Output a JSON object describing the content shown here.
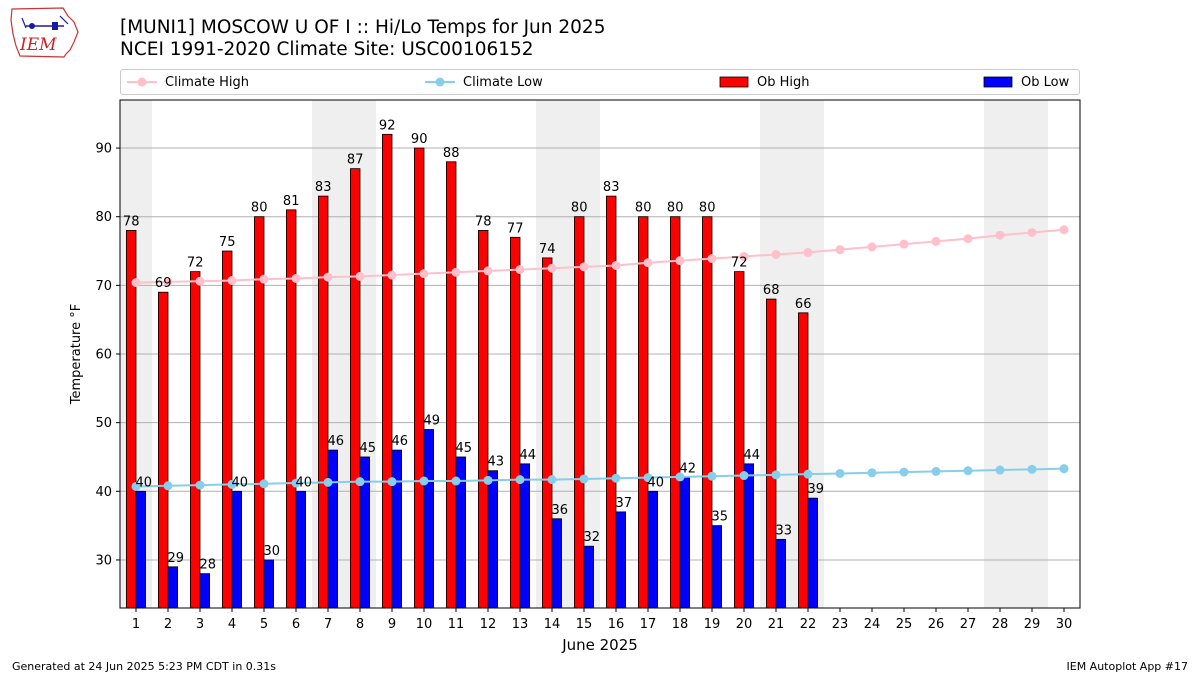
{
  "header": {
    "logo_text": "IEM",
    "title_line1": "[MUNI1] MOSCOW U OF I :: Hi/Lo Temps for Jun 2025",
    "title_line2": "NCEI 1991-2020 Climate Site: USC00106152"
  },
  "legend": {
    "placement": "top",
    "items": [
      {
        "label": "Climate High",
        "kind": "line",
        "color": "#ffc0cb"
      },
      {
        "label": "Climate Low",
        "kind": "line",
        "color": "#87ceeb"
      },
      {
        "label": "Ob High",
        "kind": "bar",
        "color": "#ff0000"
      },
      {
        "label": "Ob Low",
        "kind": "bar",
        "color": "#0000ff"
      }
    ]
  },
  "chart_data": {
    "type": "bar",
    "xlabel": "June 2025",
    "ylabel": "Temperature °F",
    "ylim": [
      23,
      97
    ],
    "yticks": [
      30,
      40,
      50,
      60,
      70,
      80,
      90
    ],
    "grid": true,
    "categories": [
      "1",
      "2",
      "3",
      "4",
      "5",
      "6",
      "7",
      "8",
      "9",
      "10",
      "11",
      "12",
      "13",
      "14",
      "15",
      "16",
      "17",
      "18",
      "19",
      "20",
      "21",
      "22",
      "23",
      "24",
      "25",
      "26",
      "27",
      "28",
      "29",
      "30"
    ],
    "weekend_shading": [
      [
        1,
        1
      ],
      [
        7,
        8
      ],
      [
        14,
        15
      ],
      [
        21,
        22
      ],
      [
        28,
        29
      ]
    ],
    "series": [
      {
        "name": "Ob High",
        "type": "bar",
        "color": "#ff0000",
        "values": [
          78,
          69,
          72,
          75,
          80,
          81,
          83,
          87,
          92,
          90,
          88,
          78,
          77,
          74,
          80,
          83,
          80,
          80,
          80,
          72,
          68,
          66,
          null,
          null,
          null,
          null,
          null,
          null,
          null,
          null
        ]
      },
      {
        "name": "Ob Low",
        "type": "bar",
        "color": "#0000ff",
        "values": [
          40,
          29,
          28,
          40,
          30,
          40,
          46,
          45,
          46,
          49,
          45,
          43,
          44,
          36,
          32,
          37,
          40,
          42,
          35,
          44,
          33,
          39,
          null,
          null,
          null,
          null,
          null,
          null,
          null,
          null
        ]
      },
      {
        "name": "Climate High",
        "type": "line",
        "color": "#ffc0cb",
        "values": [
          70.4,
          70.5,
          70.6,
          70.7,
          70.9,
          71.0,
          71.2,
          71.3,
          71.5,
          71.7,
          71.9,
          72.1,
          72.3,
          72.5,
          72.7,
          72.9,
          73.3,
          73.6,
          73.9,
          74.2,
          74.5,
          74.8,
          75.2,
          75.6,
          76.0,
          76.4,
          76.8,
          77.3,
          77.7,
          78.1
        ]
      },
      {
        "name": "Climate Low",
        "type": "line",
        "color": "#87ceeb",
        "values": [
          40.7,
          40.8,
          40.9,
          41.0,
          41.1,
          41.2,
          41.3,
          41.4,
          41.4,
          41.5,
          41.5,
          41.6,
          41.7,
          41.7,
          41.8,
          41.9,
          42.0,
          42.1,
          42.2,
          42.3,
          42.4,
          42.5,
          42.6,
          42.7,
          42.8,
          42.9,
          43.0,
          43.1,
          43.2,
          43.3
        ]
      }
    ]
  },
  "footer": {
    "left": "Generated at 24 Jun 2025 5:23 PM CDT in 0.31s",
    "right": "IEM Autoplot App #17"
  }
}
